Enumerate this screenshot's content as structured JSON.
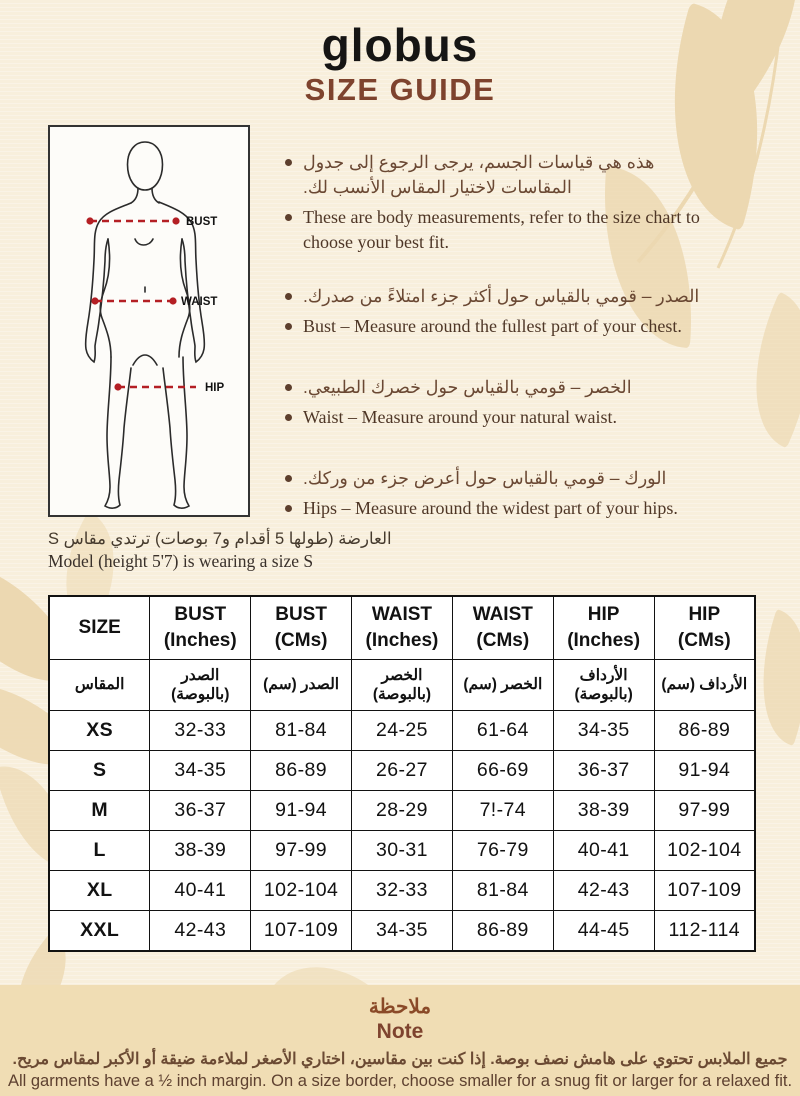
{
  "brand": {
    "logo": "globus",
    "title": "SIZE GUIDE"
  },
  "figure": {
    "bust_label": "BUST",
    "waist_label": "WAIST",
    "hip_label": "HIP"
  },
  "bullets": [
    {
      "ar": "هذه هي قياسات الجسم، يرجى الرجوع إلى جدول المقاسات لاختيار المقاس الأنسب لك.",
      "en": "These are body measurements, refer to the size chart to choose your best fit."
    },
    {
      "ar": "الصدر – قومي بالقياس حول أكثر جزء امتلاءً من صدرك.",
      "en": "Bust – Measure around the fullest part of your chest."
    },
    {
      "ar": "الخصر – قومي بالقياس حول خصرك الطبيعي.",
      "en": "Waist – Measure around your natural waist."
    },
    {
      "ar": "الورك – قومي بالقياس حول أعرض جزء من وركك.",
      "en": "Hips – Measure around the widest part of your hips."
    }
  ],
  "model_note": {
    "ar": "العارضة (طولها 5 أقدام و7 بوصات) ترتدي مقاس S",
    "en": "Model (height 5'7) is wearing a size S"
  },
  "table": {
    "headers_en": [
      "SIZE",
      "BUST\n(Inches)",
      "BUST\n(CMs)",
      "WAIST\n(Inches)",
      "WAIST\n(CMs)",
      "HIP\n(Inches)",
      "HIP\n(CMs)"
    ],
    "headers_ar": [
      "المقاس",
      "الصدر\n(بالبوصة)",
      "الصدر (سم)",
      "الخصر\n(بالبوصة)",
      "الخصر (سم)",
      "الأرداف\n(بالبوصة)",
      "الأرداف (سم)"
    ],
    "rows": [
      {
        "size": "XS",
        "values": [
          "32-33",
          "81-84",
          "24-25",
          "61-64",
          "34-35",
          "86-89"
        ]
      },
      {
        "size": "S",
        "values": [
          "34-35",
          "86-89",
          "26-27",
          "66-69",
          "36-37",
          "91-94"
        ]
      },
      {
        "size": "M",
        "values": [
          "36-37",
          "91-94",
          "28-29",
          "7!-74",
          "38-39",
          "97-99"
        ]
      },
      {
        "size": "L",
        "values": [
          "38-39",
          "97-99",
          "30-31",
          "76-79",
          "40-41",
          "102-104"
        ]
      },
      {
        "size": "XL",
        "values": [
          "40-41",
          "102-104",
          "32-33",
          "81-84",
          "42-43",
          "107-109"
        ]
      },
      {
        "size": "XXL",
        "values": [
          "42-43",
          "107-109",
          "34-35",
          "86-89",
          "44-45",
          "112-114"
        ]
      }
    ]
  },
  "note": {
    "heading_ar": "ملاحظة",
    "heading_en": "Note",
    "body_ar": "جميع الملابس تحتوي على هامش نصف بوصة. إذا كنت بين مقاسين، اختاري الأصغر لملاءمة ضيقة أو الأكبر لمقاس مريح.",
    "body_en": "All garments have a ½ inch margin. On a size border, choose smaller for a snug fit or larger for a relaxed fit."
  },
  "colors": {
    "page_background": "#f8efdc",
    "leaf_decoration": "#ecd8b1",
    "note_band_background": "#f0ddb4",
    "title_brown": "#7e432e",
    "text_brown": "#6a4833",
    "measure_line_red": "#b41f24",
    "table_border_black": "#121212"
  }
}
